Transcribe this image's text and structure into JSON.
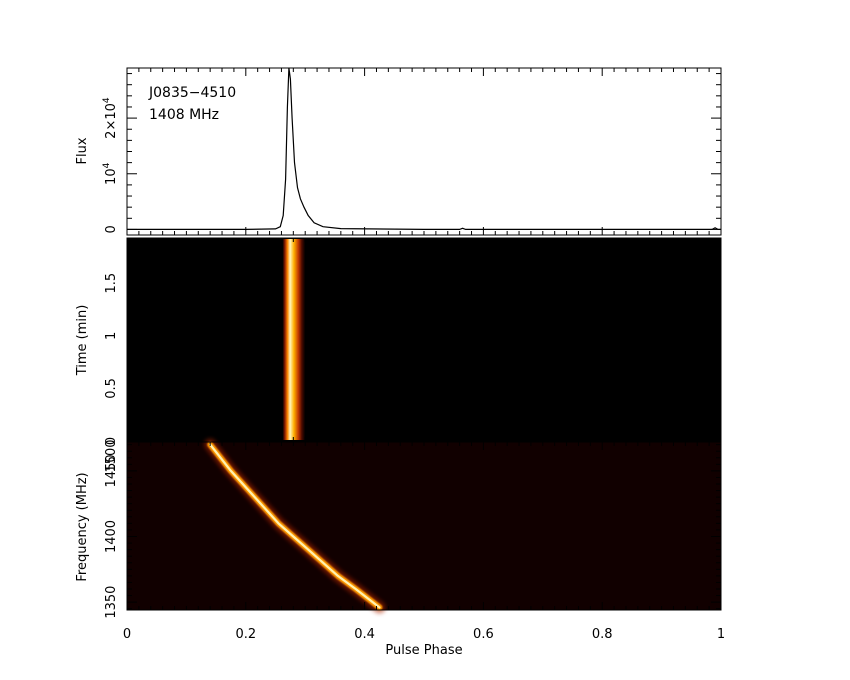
{
  "chart_data": [
    {
      "type": "line",
      "panel": "profile",
      "annotation": {
        "source": "J0835−4510",
        "frequency": "1408 MHz"
      },
      "ylabel": "Flux",
      "yticks": [
        {
          "value": 0,
          "label": "0"
        },
        {
          "value": 10000,
          "base": "10",
          "exp": "4"
        },
        {
          "value": 20000,
          "base": "2×10",
          "exp": "4"
        }
      ],
      "ylim": [
        -1000,
        29000
      ],
      "xlim": [
        0,
        1
      ],
      "x": [
        0,
        0.1,
        0.2,
        0.25,
        0.258,
        0.263,
        0.267,
        0.27,
        0.2725,
        0.275,
        0.278,
        0.282,
        0.287,
        0.292,
        0.298,
        0.305,
        0.315,
        0.33,
        0.36,
        0.5,
        0.56,
        0.565,
        0.57,
        0.7,
        0.9,
        0.985,
        0.99,
        0.995,
        1.0
      ],
      "y": [
        0,
        0,
        0,
        100,
        500,
        2500,
        9000,
        22000,
        29000,
        27000,
        20000,
        12000,
        7500,
        5500,
        4000,
        2500,
        1200,
        500,
        150,
        0,
        0,
        200,
        0,
        0,
        0,
        0,
        300,
        0,
        0
      ]
    },
    {
      "type": "heatmap",
      "panel": "time-phase",
      "ylabel": "Time (min)",
      "ylim": [
        0,
        1.93
      ],
      "yticks": [
        "0",
        "0.5",
        "1",
        "1.5"
      ],
      "xlim": [
        0,
        1
      ],
      "pulse": {
        "phase_start": 0.268,
        "phase_end": 0.292,
        "peak_phase": 0.276,
        "tail_end": 0.3
      }
    },
    {
      "type": "heatmap",
      "panel": "frequency-phase",
      "ylabel": "Frequency (MHz)",
      "xlabel": "Pulse Phase",
      "ylim": [
        1344,
        1472
      ],
      "yticks": [
        "1350",
        "1400",
        "1450",
        "1500"
      ],
      "xlim": [
        0,
        1
      ],
      "xticks": [
        "0",
        "0.2",
        "0.4",
        "0.6",
        "0.8",
        "1"
      ],
      "sweep": [
        {
          "freq": 1470,
          "phase": 0.14
        },
        {
          "freq": 1450,
          "phase": 0.175
        },
        {
          "freq": 1430,
          "phase": 0.215
        },
        {
          "freq": 1410,
          "phase": 0.255
        },
        {
          "freq": 1400,
          "phase": 0.28
        },
        {
          "freq": 1390,
          "phase": 0.305
        },
        {
          "freq": 1370,
          "phase": 0.355
        },
        {
          "freq": 1360,
          "phase": 0.385
        },
        {
          "freq": 1346,
          "phase": 0.425
        }
      ]
    }
  ]
}
